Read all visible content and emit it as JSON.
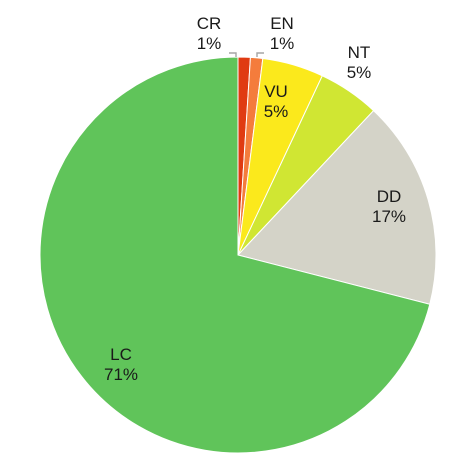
{
  "chart_data": {
    "type": "pie",
    "start_angle_deg": 0,
    "direction": "clockwise",
    "legend": "none",
    "slices": [
      {
        "name": "CR",
        "value": 1,
        "label": "1%",
        "color": "#e03b12"
      },
      {
        "name": "EN",
        "value": 1,
        "label": "1%",
        "color": "#f47c3c"
      },
      {
        "name": "VU",
        "value": 5,
        "label": "5%",
        "color": "#fbe91c"
      },
      {
        "name": "NT",
        "value": 5,
        "label": "5%",
        "color": "#d0e633"
      },
      {
        "name": "DD",
        "value": 17,
        "label": "17%",
        "color": "#d4d3c8"
      },
      {
        "name": "LC",
        "value": 71,
        "label": "71%",
        "color": "#60c45a"
      }
    ]
  }
}
